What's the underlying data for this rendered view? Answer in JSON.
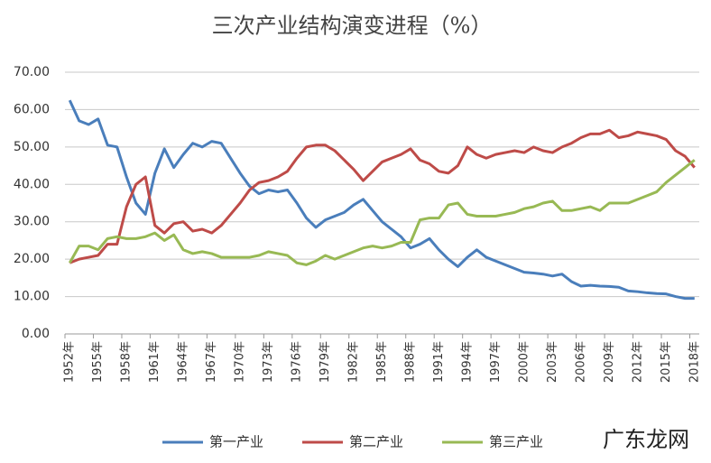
{
  "chart_data": {
    "type": "line",
    "title": "三次产业结构演变进程（%）",
    "categories": [
      "1952年",
      null,
      null,
      "1955年",
      null,
      null,
      "1958年",
      null,
      null,
      "1961年",
      null,
      null,
      "1964年",
      null,
      null,
      "1967年",
      null,
      null,
      "1970年",
      null,
      null,
      "1973年",
      null,
      null,
      "1976年",
      null,
      null,
      "1979年",
      null,
      null,
      "1982年",
      null,
      null,
      "1985年",
      null,
      null,
      "1988年",
      null,
      null,
      "1991年",
      null,
      null,
      "1994年",
      null,
      null,
      "1997年",
      null,
      null,
      "2000年",
      null,
      null,
      "2003年",
      null,
      null,
      "2006年",
      null,
      null,
      "2009年",
      null,
      null,
      "2012年",
      null,
      null,
      "2015年",
      null,
      null,
      "2018年"
    ],
    "series": [
      {
        "name": "第一产业",
        "color": "#4a7ebb",
        "values": [
          62.5,
          57,
          56,
          57.5,
          50.5,
          50,
          42,
          35,
          32,
          43,
          49.5,
          44.5,
          48,
          51,
          50,
          51.5,
          51,
          47,
          43,
          39.5,
          37.5,
          38.5,
          38,
          38.5,
          35,
          31,
          28.5,
          30.5,
          31.5,
          32.5,
          34.5,
          36,
          33,
          30,
          28,
          26,
          23,
          24,
          25.5,
          22.5,
          20,
          18,
          20.5,
          22.5,
          20.5,
          19.5,
          18.5,
          17.5,
          16.5,
          16.3,
          16,
          15.5,
          16,
          14,
          12.8,
          13,
          12.8,
          12.7,
          12.5,
          11.5,
          11.3,
          11,
          10.8,
          10.7,
          10,
          9.5,
          9.5
        ]
      },
      {
        "name": "第二产业",
        "color": "#be4b48",
        "values": [
          19,
          20,
          20.5,
          21,
          24,
          24,
          34,
          40,
          42,
          29,
          27,
          29.5,
          30,
          27.5,
          28,
          27,
          29,
          32,
          35,
          38.5,
          40.5,
          41,
          42,
          43.5,
          47,
          50,
          50.5,
          50.5,
          49,
          46.5,
          44,
          41,
          43.5,
          46,
          47,
          48,
          49.5,
          46.5,
          45.5,
          43.5,
          43,
          45,
          50,
          48,
          47,
          48,
          48.5,
          49,
          48.5,
          50,
          49,
          48.5,
          50,
          51,
          52.5,
          53.5,
          53.5,
          54.5,
          52.5,
          53,
          54,
          53.5,
          53,
          52,
          49,
          47.5,
          44.5
        ]
      },
      {
        "name": "第三产业",
        "color": "#98b954",
        "values": [
          19,
          23.5,
          23.5,
          22.5,
          25.5,
          26,
          25.5,
          25.5,
          26,
          27,
          25,
          26.5,
          22.5,
          21.5,
          22,
          21.5,
          20.5,
          20.5,
          20.5,
          20.5,
          21,
          22,
          21.5,
          21,
          19,
          18.5,
          19.5,
          21,
          20,
          21,
          22,
          23,
          23.5,
          23,
          23.5,
          24.5,
          24.5,
          30.5,
          31,
          31,
          34.5,
          35,
          32,
          31.5,
          31.5,
          31.5,
          32,
          32.5,
          33.5,
          34,
          35,
          35.5,
          33,
          33,
          33.5,
          34,
          33,
          35,
          35,
          35,
          36,
          37,
          38,
          40.5,
          42.5,
          44.5,
          46.5
        ]
      }
    ],
    "ylim": [
      0,
      70
    ],
    "yticks": [
      {
        "value": 0,
        "label": "0.00"
      },
      {
        "value": 10,
        "label": "10.00"
      },
      {
        "value": 20,
        "label": "20.00"
      },
      {
        "value": 30,
        "label": "30.00"
      },
      {
        "value": 40,
        "label": "40.00"
      },
      {
        "value": 50,
        "label": "50.00"
      },
      {
        "value": 60,
        "label": "60.00"
      },
      {
        "value": 70,
        "label": "70.00"
      }
    ],
    "grid": true,
    "legend": "bottom",
    "watermark": "广东龙网"
  }
}
